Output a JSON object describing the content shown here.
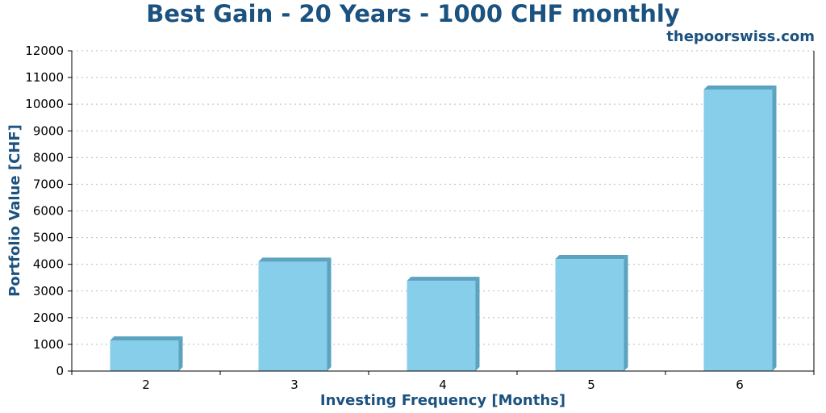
{
  "chart_data": {
    "type": "bar",
    "title": "Best Gain - 20 Years - 1000 CHF monthly",
    "watermark": "thepoorswiss.com",
    "xlabel": "Investing Frequency [Months]",
    "ylabel": "Portfolio Value [CHF]",
    "categories": [
      "2",
      "3",
      "4",
      "5",
      "6"
    ],
    "values": [
      1150,
      4100,
      3380,
      4200,
      10550
    ],
    "ylim": [
      0,
      12000
    ],
    "yticks": [
      0,
      1000,
      2000,
      3000,
      4000,
      5000,
      6000,
      7000,
      8000,
      9000,
      10000,
      11000,
      12000
    ],
    "grid": true,
    "colors": {
      "bar": "#87ceeb",
      "bar_shade": "#5ba3bf",
      "text_accent": "#1b527f",
      "grid": "#bbbbbb"
    }
  }
}
